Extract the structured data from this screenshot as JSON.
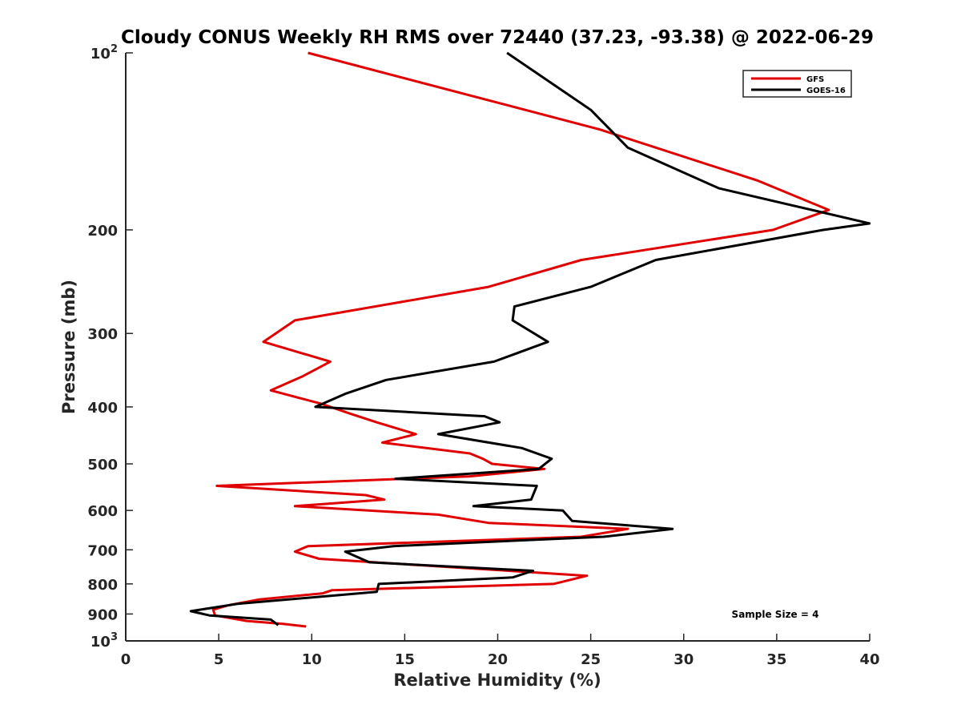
{
  "chart_data": {
    "type": "line",
    "title": "Cloudy CONUS Weekly RH RMS over 72440 (37.23, -93.38) @ 2022-06-29",
    "xlabel": "Relative Humidity (%)",
    "ylabel": "Pressure (mb)",
    "xlim": [
      0,
      40
    ],
    "ylim": [
      100,
      1000
    ],
    "y_scale": "log",
    "y_reversed": true,
    "grid": false,
    "legend_position": "top-right",
    "annotation": "Sample Size = 4",
    "x_ticks": [
      "0",
      "5",
      "10",
      "15",
      "20",
      "25",
      "30",
      "35",
      "40"
    ],
    "x_tick_values": [
      0,
      5,
      10,
      15,
      20,
      25,
      30,
      35,
      40
    ],
    "y_ticks": [
      {
        "value": 100,
        "base": "10",
        "exp": "2"
      },
      {
        "value": 200,
        "base": "200",
        "exp": ""
      },
      {
        "value": 300,
        "base": "300",
        "exp": ""
      },
      {
        "value": 400,
        "base": "400",
        "exp": ""
      },
      {
        "value": 500,
        "base": "500",
        "exp": ""
      },
      {
        "value": 600,
        "base": "600",
        "exp": ""
      },
      {
        "value": 700,
        "base": "700",
        "exp": ""
      },
      {
        "value": 800,
        "base": "800",
        "exp": ""
      },
      {
        "value": 900,
        "base": "900",
        "exp": ""
      },
      {
        "value": 1000,
        "base": "10",
        "exp": "3"
      }
    ],
    "series": [
      {
        "name": "GFS",
        "color": "#e00000",
        "points": [
          [
            9.8,
            100
          ],
          [
            25.5,
            135
          ],
          [
            34,
            165
          ],
          [
            37.8,
            185
          ],
          [
            34.8,
            200
          ],
          [
            24.5,
            225
          ],
          [
            19.5,
            250
          ],
          [
            9.1,
            285
          ],
          [
            7.4,
            310
          ],
          [
            11,
            335
          ],
          [
            9.5,
            355
          ],
          [
            7.8,
            375
          ],
          [
            10.5,
            395
          ],
          [
            12,
            410
          ],
          [
            13.5,
            425
          ],
          [
            15.6,
            445
          ],
          [
            13.8,
            460
          ],
          [
            18.5,
            480
          ],
          [
            19.2,
            490
          ],
          [
            19.7,
            500
          ],
          [
            22.5,
            510
          ],
          [
            18.5,
            525
          ],
          [
            4.9,
            545
          ],
          [
            12.9,
            565
          ],
          [
            13.9,
            575
          ],
          [
            9.1,
            590
          ],
          [
            16.8,
            610
          ],
          [
            19.5,
            630
          ],
          [
            27,
            645
          ],
          [
            24.5,
            665
          ],
          [
            9.8,
            690
          ],
          [
            9.1,
            705
          ],
          [
            10.4,
            725
          ],
          [
            24.8,
            775
          ],
          [
            23,
            800
          ],
          [
            11.1,
            820
          ],
          [
            10.6,
            830
          ],
          [
            7.2,
            850
          ],
          [
            5.5,
            870
          ],
          [
            4.7,
            885
          ],
          [
            4.8,
            905
          ],
          [
            6.5,
            925
          ],
          [
            8.4,
            935
          ],
          [
            9.7,
            945
          ]
        ]
      },
      {
        "name": "GOES-16",
        "color": "#000000",
        "points": [
          [
            20.5,
            100
          ],
          [
            25,
            125
          ],
          [
            27,
            145
          ],
          [
            31.9,
            170
          ],
          [
            40,
            195
          ],
          [
            37.5,
            200
          ],
          [
            28.5,
            225
          ],
          [
            25,
            250
          ],
          [
            20.9,
            270
          ],
          [
            20.8,
            285
          ],
          [
            22.7,
            310
          ],
          [
            19.8,
            335
          ],
          [
            14,
            360
          ],
          [
            11.8,
            380
          ],
          [
            10.2,
            400
          ],
          [
            19.3,
            415
          ],
          [
            20.1,
            425
          ],
          [
            16.8,
            445
          ],
          [
            21.3,
            470
          ],
          [
            22.9,
            490
          ],
          [
            22.2,
            510
          ],
          [
            14.5,
            530
          ],
          [
            22.1,
            545
          ],
          [
            21.8,
            575
          ],
          [
            18.7,
            590
          ],
          [
            23.5,
            600
          ],
          [
            24,
            625
          ],
          [
            29.4,
            645
          ],
          [
            25.7,
            665
          ],
          [
            14.4,
            690
          ],
          [
            11.8,
            705
          ],
          [
            13.1,
            735
          ],
          [
            21.9,
            760
          ],
          [
            20.8,
            780
          ],
          [
            13.6,
            800
          ],
          [
            13.5,
            825
          ],
          [
            6,
            865
          ],
          [
            3.5,
            890
          ],
          [
            4.5,
            905
          ],
          [
            7.8,
            920
          ],
          [
            8.2,
            940
          ]
        ]
      }
    ]
  }
}
